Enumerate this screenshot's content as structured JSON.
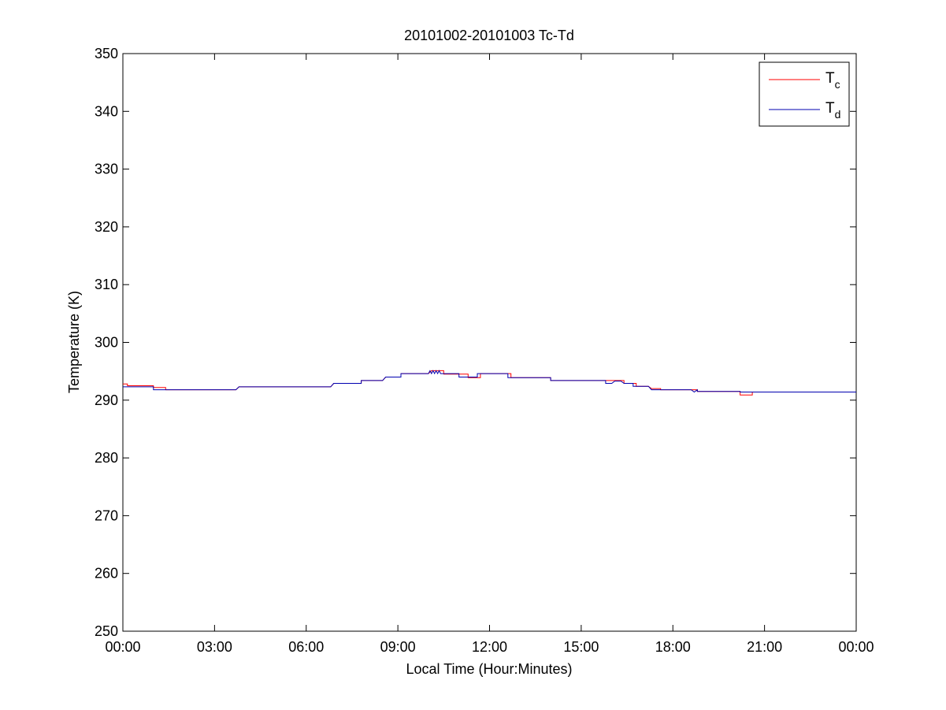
{
  "chart_data": {
    "type": "line",
    "title": "20101002-20101003 Tc-Td",
    "xlabel": "Local Time (Hour:Minutes)",
    "ylabel": "Temperature (K)",
    "xlim": [
      0,
      24
    ],
    "ylim": [
      250,
      350
    ],
    "x_ticks": [
      0,
      3,
      6,
      9,
      12,
      15,
      18,
      21,
      24
    ],
    "x_tick_labels": [
      "00:00",
      "03:00",
      "06:00",
      "09:00",
      "12:00",
      "15:00",
      "18:00",
      "21:00",
      "00:00"
    ],
    "y_ticks": [
      250,
      260,
      270,
      280,
      290,
      300,
      310,
      320,
      330,
      340,
      350
    ],
    "y_tick_labels": [
      "250",
      "260",
      "270",
      "280",
      "290",
      "300",
      "310",
      "320",
      "330",
      "340",
      "350"
    ],
    "grid": false,
    "legend_position": "top-right",
    "series": [
      {
        "name": "Tc",
        "label_main": "T",
        "label_sub": "c",
        "color": "#ff0000",
        "x": [
          0,
          0.15,
          0.15,
          1.0,
          1.0,
          1.4,
          1.4,
          3.7,
          3.8,
          6.8,
          6.9,
          7.8,
          7.8,
          8.5,
          8.6,
          9.1,
          9.1,
          10.0,
          10.1,
          10.5,
          10.5,
          11.3,
          11.3,
          11.7,
          11.7,
          12.5,
          12.5,
          12.7,
          12.7,
          14.0,
          14.0,
          15.9,
          15.9,
          16.4,
          16.4,
          16.8,
          16.8,
          17.2,
          17.3,
          17.6,
          17.6,
          18.6,
          18.7,
          18.8,
          18.8,
          19.1,
          19.1,
          20.2,
          20.2,
          20.6,
          20.6,
          24.0
        ],
        "y": [
          292.8,
          292.8,
          292.5,
          292.5,
          292.2,
          292.2,
          291.8,
          291.8,
          292.3,
          292.3,
          292.9,
          292.9,
          293.4,
          293.4,
          294.0,
          294.0,
          294.6,
          294.6,
          295.1,
          295.1,
          294.5,
          294.5,
          293.9,
          293.9,
          294.6,
          294.6,
          294.6,
          294.6,
          293.9,
          293.9,
          293.4,
          293.4,
          293.4,
          293.4,
          292.9,
          292.9,
          292.4,
          292.4,
          292.0,
          292.0,
          291.8,
          291.8,
          291.8,
          291.8,
          291.5,
          291.5,
          291.5,
          291.5,
          290.9,
          290.9,
          291.4,
          291.4
        ]
      },
      {
        "name": "Td",
        "label_main": "T",
        "label_sub": "d",
        "color": "#0000b0",
        "x": [
          0,
          1.0,
          1.0,
          3.7,
          3.8,
          6.8,
          6.9,
          7.8,
          7.8,
          8.5,
          8.6,
          9.1,
          9.1,
          10.0,
          10.05,
          10.1,
          10.15,
          10.2,
          10.25,
          10.3,
          10.35,
          10.4,
          10.45,
          11.0,
          11.0,
          11.2,
          11.2,
          11.6,
          11.6,
          11.7,
          11.8,
          12.6,
          12.6,
          14.0,
          14.0,
          15.8,
          15.8,
          16.0,
          16.1,
          16.3,
          16.4,
          16.7,
          16.7,
          17.2,
          17.3,
          18.6,
          18.7,
          18.8,
          18.8,
          20.2,
          20.2,
          24.0
        ],
        "y": [
          292.3,
          292.3,
          291.8,
          291.8,
          292.3,
          292.3,
          292.9,
          292.9,
          293.4,
          293.4,
          294.0,
          294.0,
          294.6,
          294.6,
          295.1,
          294.6,
          295.1,
          294.6,
          295.1,
          294.6,
          295.1,
          294.6,
          294.6,
          294.6,
          294.0,
          294.0,
          294.0,
          294.0,
          294.6,
          294.6,
          294.6,
          294.6,
          293.9,
          293.9,
          293.4,
          293.4,
          292.9,
          292.9,
          293.3,
          293.3,
          292.9,
          292.9,
          292.4,
          292.4,
          291.8,
          291.8,
          291.4,
          291.8,
          291.5,
          291.5,
          291.4,
          291.4
        ]
      }
    ]
  }
}
